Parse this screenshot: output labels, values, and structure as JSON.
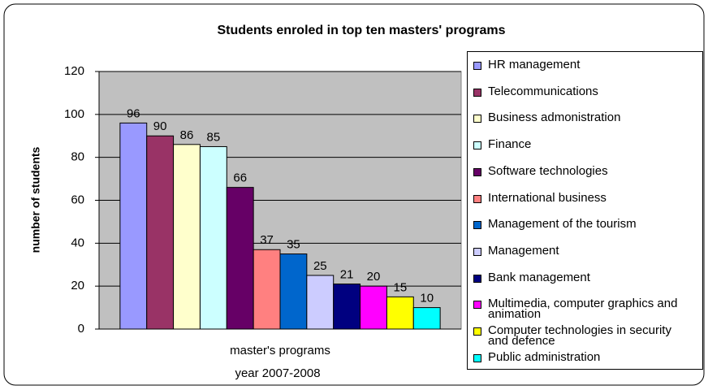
{
  "chart_data": {
    "type": "bar",
    "title": "Students enroled in top ten masters' programs",
    "ylabel": "number of students",
    "categories": [
      "master's programs"
    ],
    "xlabel": "year 2007-2008",
    "ylim": [
      0,
      120
    ],
    "yticks": [
      0,
      20,
      40,
      60,
      80,
      100,
      120
    ],
    "grid": true,
    "legend": "right",
    "series": [
      {
        "name": "HR management",
        "color": "#9999ff",
        "values": [
          96
        ]
      },
      {
        "name": "Telecommunications",
        "color": "#993366",
        "values": [
          90
        ]
      },
      {
        "name": "Business admonistration",
        "color": "#ffffcc",
        "values": [
          86
        ]
      },
      {
        "name": "Finance",
        "color": "#ccffff",
        "values": [
          85
        ]
      },
      {
        "name": "Software technologies",
        "color": "#660066",
        "values": [
          66
        ]
      },
      {
        "name": "International business",
        "color": "#ff8080",
        "values": [
          37
        ]
      },
      {
        "name": "Management of the tourism",
        "color": "#0066cc",
        "values": [
          35
        ]
      },
      {
        "name": "Management",
        "color": "#ccccff",
        "values": [
          25
        ]
      },
      {
        "name": "Bank management",
        "color": "#000080",
        "values": [
          21
        ]
      },
      {
        "name": "Multimedia, computer graphics and animation",
        "color": "#ff00ff",
        "values": [
          20
        ]
      },
      {
        "name": "Computer technologies in security and defence",
        "color": "#ffff00",
        "values": [
          15
        ]
      },
      {
        "name": "Public administration",
        "color": "#00ffff",
        "values": [
          10
        ]
      }
    ]
  }
}
